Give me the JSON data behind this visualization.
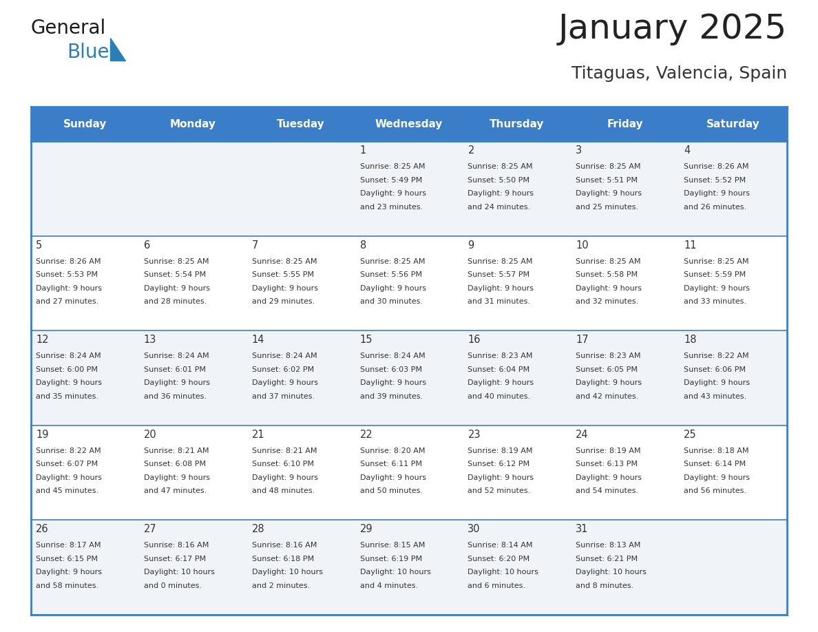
{
  "title": "January 2025",
  "subtitle": "Titaguas, Valencia, Spain",
  "header_bg": "#3A7DC9",
  "header_text": "#FFFFFF",
  "row_bg_light": "#F0F4F8",
  "row_bg_white": "#FFFFFF",
  "border_color": "#3A7DC9",
  "border_color_row": "#3A7DC9",
  "day_headers": [
    "Sunday",
    "Monday",
    "Tuesday",
    "Wednesday",
    "Thursday",
    "Friday",
    "Saturday"
  ],
  "title_color": "#222222",
  "subtitle_color": "#333333",
  "cell_text_color": "#333333",
  "day_number_color": "#333333",
  "calendar": [
    [
      null,
      null,
      null,
      {
        "day": 1,
        "sunrise": "8:25 AM",
        "sunset": "5:49 PM",
        "daylight": "9 hours and 23 minutes"
      },
      {
        "day": 2,
        "sunrise": "8:25 AM",
        "sunset": "5:50 PM",
        "daylight": "9 hours and 24 minutes"
      },
      {
        "day": 3,
        "sunrise": "8:25 AM",
        "sunset": "5:51 PM",
        "daylight": "9 hours and 25 minutes"
      },
      {
        "day": 4,
        "sunrise": "8:26 AM",
        "sunset": "5:52 PM",
        "daylight": "9 hours and 26 minutes"
      }
    ],
    [
      {
        "day": 5,
        "sunrise": "8:26 AM",
        "sunset": "5:53 PM",
        "daylight": "9 hours and 27 minutes"
      },
      {
        "day": 6,
        "sunrise": "8:25 AM",
        "sunset": "5:54 PM",
        "daylight": "9 hours and 28 minutes"
      },
      {
        "day": 7,
        "sunrise": "8:25 AM",
        "sunset": "5:55 PM",
        "daylight": "9 hours and 29 minutes"
      },
      {
        "day": 8,
        "sunrise": "8:25 AM",
        "sunset": "5:56 PM",
        "daylight": "9 hours and 30 minutes"
      },
      {
        "day": 9,
        "sunrise": "8:25 AM",
        "sunset": "5:57 PM",
        "daylight": "9 hours and 31 minutes"
      },
      {
        "day": 10,
        "sunrise": "8:25 AM",
        "sunset": "5:58 PM",
        "daylight": "9 hours and 32 minutes"
      },
      {
        "day": 11,
        "sunrise": "8:25 AM",
        "sunset": "5:59 PM",
        "daylight": "9 hours and 33 minutes"
      }
    ],
    [
      {
        "day": 12,
        "sunrise": "8:24 AM",
        "sunset": "6:00 PM",
        "daylight": "9 hours and 35 minutes"
      },
      {
        "day": 13,
        "sunrise": "8:24 AM",
        "sunset": "6:01 PM",
        "daylight": "9 hours and 36 minutes"
      },
      {
        "day": 14,
        "sunrise": "8:24 AM",
        "sunset": "6:02 PM",
        "daylight": "9 hours and 37 minutes"
      },
      {
        "day": 15,
        "sunrise": "8:24 AM",
        "sunset": "6:03 PM",
        "daylight": "9 hours and 39 minutes"
      },
      {
        "day": 16,
        "sunrise": "8:23 AM",
        "sunset": "6:04 PM",
        "daylight": "9 hours and 40 minutes"
      },
      {
        "day": 17,
        "sunrise": "8:23 AM",
        "sunset": "6:05 PM",
        "daylight": "9 hours and 42 minutes"
      },
      {
        "day": 18,
        "sunrise": "8:22 AM",
        "sunset": "6:06 PM",
        "daylight": "9 hours and 43 minutes"
      }
    ],
    [
      {
        "day": 19,
        "sunrise": "8:22 AM",
        "sunset": "6:07 PM",
        "daylight": "9 hours and 45 minutes"
      },
      {
        "day": 20,
        "sunrise": "8:21 AM",
        "sunset": "6:08 PM",
        "daylight": "9 hours and 47 minutes"
      },
      {
        "day": 21,
        "sunrise": "8:21 AM",
        "sunset": "6:10 PM",
        "daylight": "9 hours and 48 minutes"
      },
      {
        "day": 22,
        "sunrise": "8:20 AM",
        "sunset": "6:11 PM",
        "daylight": "9 hours and 50 minutes"
      },
      {
        "day": 23,
        "sunrise": "8:19 AM",
        "sunset": "6:12 PM",
        "daylight": "9 hours and 52 minutes"
      },
      {
        "day": 24,
        "sunrise": "8:19 AM",
        "sunset": "6:13 PM",
        "daylight": "9 hours and 54 minutes"
      },
      {
        "day": 25,
        "sunrise": "8:18 AM",
        "sunset": "6:14 PM",
        "daylight": "9 hours and 56 minutes"
      }
    ],
    [
      {
        "day": 26,
        "sunrise": "8:17 AM",
        "sunset": "6:15 PM",
        "daylight": "9 hours and 58 minutes"
      },
      {
        "day": 27,
        "sunrise": "8:16 AM",
        "sunset": "6:17 PM",
        "daylight": "10 hours and 0 minutes"
      },
      {
        "day": 28,
        "sunrise": "8:16 AM",
        "sunset": "6:18 PM",
        "daylight": "10 hours and 2 minutes"
      },
      {
        "day": 29,
        "sunrise": "8:15 AM",
        "sunset": "6:19 PM",
        "daylight": "10 hours and 4 minutes"
      },
      {
        "day": 30,
        "sunrise": "8:14 AM",
        "sunset": "6:20 PM",
        "daylight": "10 hours and 6 minutes"
      },
      {
        "day": 31,
        "sunrise": "8:13 AM",
        "sunset": "6:21 PM",
        "daylight": "10 hours and 8 minutes"
      },
      null
    ]
  ],
  "logo_general_color": "#1a1a1a",
  "logo_blue_color": "#2980B9",
  "logo_triangle_color": "#2980B9"
}
